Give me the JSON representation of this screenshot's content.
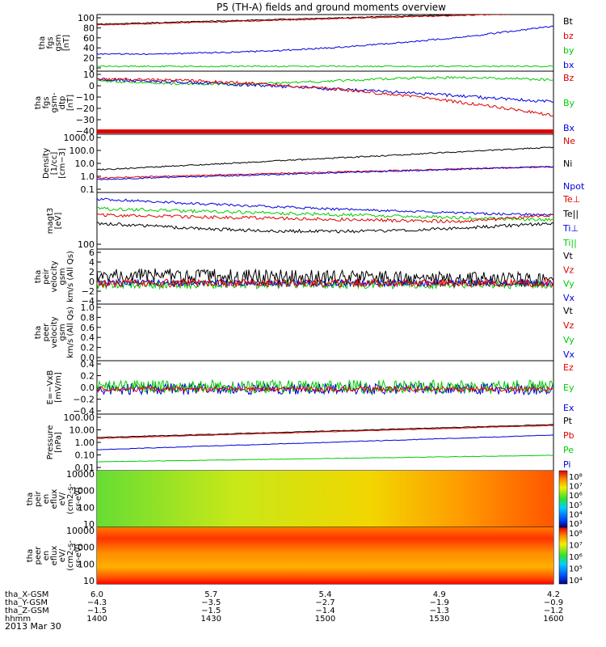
{
  "title": "P5 (TH-A) fields and ground moments overview",
  "date_label": "2013 Mar 30",
  "colors": {
    "black": "#000000",
    "red": "#e00000",
    "green": "#00cc00",
    "blue": "#0000dd",
    "cyan": "#00aacc"
  },
  "chart_data": [
    {
      "type": "line",
      "ylabel": [
        "tha",
        "fgs",
        "gsm",
        "[nT]"
      ],
      "yticks": [
        "100",
        "80",
        "60",
        "40",
        "20",
        "0"
      ],
      "series": [
        {
          "name": "Bt",
          "color": "black"
        },
        {
          "name": "bz",
          "color": "red"
        },
        {
          "name": "by",
          "color": "green"
        },
        {
          "name": "bx",
          "color": "blue"
        }
      ]
    },
    {
      "type": "line",
      "ylabel": [
        "tha",
        "fgs",
        "gsm-",
        "dtp",
        "[nT]"
      ],
      "yticks": [
        "10",
        "0",
        "−10",
        "−20",
        "−30",
        "−40"
      ],
      "series": [
        {
          "name": "Bz",
          "color": "red"
        },
        {
          "name": "By",
          "color": "green"
        },
        {
          "name": "Bx",
          "color": "blue"
        }
      ]
    },
    {
      "type": "line",
      "ylabel": [
        "Density",
        "[1/cc]",
        "[cm−3]"
      ],
      "yticks": [
        "1000.0",
        "100.0",
        "10.0",
        "1.0",
        "0.1"
      ],
      "series": [
        {
          "name": "Ne",
          "color": "red"
        },
        {
          "name": "Ni",
          "color": "black"
        },
        {
          "name": "Npot",
          "color": "blue"
        }
      ]
    },
    {
      "type": "line",
      "ylabel": [
        "magt3",
        "[eV]"
      ],
      "yticks": [
        "100"
      ],
      "series": [
        {
          "name": "Te⊥",
          "color": "red"
        },
        {
          "name": "Te||",
          "color": "black"
        },
        {
          "name": "Ti⊥",
          "color": "blue"
        },
        {
          "name": "Ti||",
          "color": "green"
        }
      ]
    },
    {
      "type": "line",
      "ylabel": [
        "tha",
        "peir",
        "velocity",
        "gsm",
        "km/s (All Qs)"
      ],
      "yticks": [
        "6",
        "4",
        "2",
        "0",
        "−2",
        "−4"
      ],
      "series": [
        {
          "name": "Vt",
          "color": "black"
        },
        {
          "name": "Vz",
          "color": "red"
        },
        {
          "name": "Vy",
          "color": "green"
        },
        {
          "name": "Vx",
          "color": "blue"
        }
      ]
    },
    {
      "type": "line",
      "ylabel": [
        "tha",
        "peer",
        "velocity",
        "gsm",
        "km/s (All Qs)"
      ],
      "yticks": [
        "1.0",
        "0.8",
        "0.6",
        "0.4",
        "0.2",
        "0.0"
      ],
      "series": [
        {
          "name": "Vt",
          "color": "black"
        },
        {
          "name": "Vz",
          "color": "red"
        },
        {
          "name": "Vy",
          "color": "green"
        },
        {
          "name": "Vx",
          "color": "blue"
        }
      ]
    },
    {
      "type": "line",
      "ylabel": [
        "E=−VxB",
        "[mV/m]"
      ],
      "yticks": [
        "0.4",
        "0.2",
        "0.0",
        "−0.2",
        "−0.4"
      ],
      "series": [
        {
          "name": "Ez",
          "color": "red"
        },
        {
          "name": "Ey",
          "color": "green"
        },
        {
          "name": "Ex",
          "color": "blue"
        }
      ]
    },
    {
      "type": "line",
      "ylabel": [
        "Pressure",
        "[nPa]"
      ],
      "yticks": [
        "100.00",
        "10.00",
        "1.00",
        "0.10",
        "0.01"
      ],
      "series": [
        {
          "name": "Pt",
          "color": "black"
        },
        {
          "name": "Pb",
          "color": "red"
        },
        {
          "name": "Pe",
          "color": "green"
        },
        {
          "name": "Pi",
          "color": "blue"
        }
      ]
    },
    {
      "type": "heatmap",
      "ylabel": [
        "tha",
        "peir",
        "en",
        "eflux",
        "eV/",
        "(cm2-s-",
        "sr-eV)"
      ],
      "yticks": [
        "10000",
        "1000",
        "100",
        "10"
      ],
      "colorbar_ticks": [
        "10⁸",
        "10⁷",
        "10⁶",
        "10⁵",
        "10⁴",
        "10³"
      ]
    },
    {
      "type": "heatmap",
      "ylabel": [
        "tha",
        "peer",
        "en",
        "eflux",
        "eV/",
        "(cm2-s-",
        "sr-eV)"
      ],
      "yticks": [
        "10000",
        "1000",
        "100",
        "10"
      ],
      "colorbar_ticks": [
        "10⁸",
        "10⁷",
        "10⁶",
        "10⁵",
        "10⁴"
      ]
    }
  ],
  "x_axis": {
    "rows": [
      {
        "name": "tha_X-GSM",
        "values": [
          "6.0",
          "5.7",
          "5.4",
          "4.9",
          "4.2"
        ]
      },
      {
        "name": "tha_Y-GSM",
        "values": [
          "−4.3",
          "−3.5",
          "−2.7",
          "−1.9",
          "−0.9"
        ]
      },
      {
        "name": "tha_Z-GSM",
        "values": [
          "−1.5",
          "−1.5",
          "−1.4",
          "−1.3",
          "−1.2"
        ]
      },
      {
        "name": "hhmm",
        "values": [
          "1400",
          "1430",
          "1500",
          "1530",
          "1600"
        ]
      }
    ]
  }
}
